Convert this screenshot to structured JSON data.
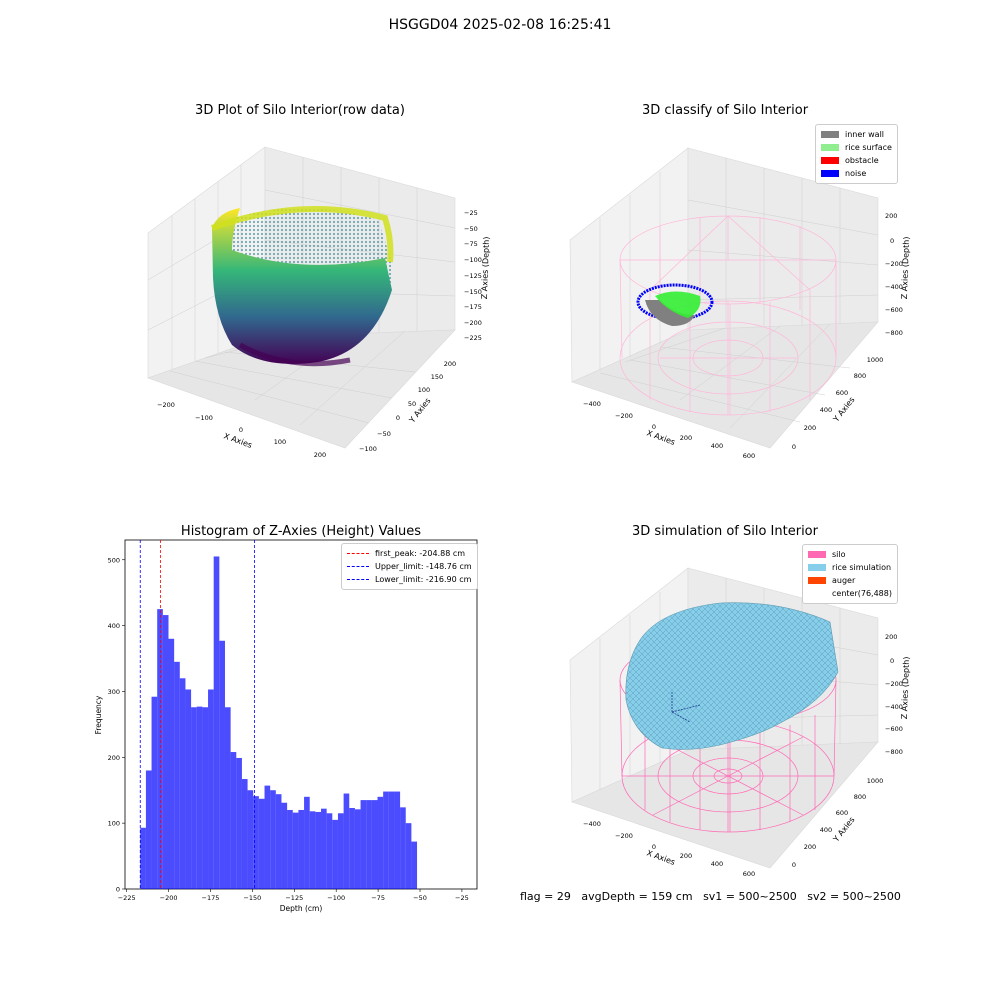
{
  "suptitle": "HSGGD04 2025-02-08 16:25:41",
  "footer": {
    "flag": "flag = 29",
    "avg_depth": "avgDepth = 159 cm",
    "sv1": "sv1 = 500~2500",
    "sv2": "sv2 = 500~2500"
  },
  "chart_data": [
    {
      "type": "scatter",
      "title": "3D Plot of Silo Interior(row data)",
      "xlabel": "X Axies",
      "ylabel": "Y Axies",
      "zlabel": "Z Axies (Depth)",
      "x_ticks": [
        "−200",
        "−100",
        "0",
        "100",
        "200"
      ],
      "y_ticks": [
        "−100",
        "−50",
        "0",
        "50",
        "100",
        "150",
        "200"
      ],
      "z_ticks": [
        "−25",
        "−50",
        "−75",
        "−100",
        "−125",
        "−150",
        "−175",
        "−200",
        "−225"
      ],
      "colormap": "viridis"
    },
    {
      "type": "scatter",
      "title": "3D classify of Silo Interior",
      "xlabel": "X Axies",
      "ylabel": "Y Axies",
      "zlabel": "Z Axies (Depth)",
      "x_ticks": [
        "−400",
        "−200",
        "0",
        "200",
        "400",
        "600"
      ],
      "y_ticks": [
        "0",
        "200",
        "400",
        "600",
        "800",
        "1000"
      ],
      "z_ticks": [
        "200",
        "0",
        "−200",
        "−400",
        "−600",
        "−800"
      ],
      "legend": [
        {
          "name": "inner wall",
          "color": "#808080"
        },
        {
          "name": "rice surface",
          "color": "#90ee90"
        },
        {
          "name": "obstacle",
          "color": "#ff0000"
        },
        {
          "name": "noise",
          "color": "#0000ff"
        }
      ],
      "legend_position": "top-right"
    },
    {
      "type": "bar",
      "title": "Histogram of Z-Axies (Height) Values",
      "xlabel": "Depth (cm)",
      "ylabel": "Frequency",
      "xlim": [
        -226,
        -16
      ],
      "ylim": [
        0,
        530
      ],
      "x_ticks": [
        -225,
        -200,
        -175,
        -150,
        -125,
        -100,
        -75,
        -50,
        -25
      ],
      "x_tick_labels": [
        "−225",
        "−200",
        "−175",
        "−150",
        "−125",
        "−100",
        "−75",
        "−50",
        "−25"
      ],
      "y_ticks": [
        0,
        100,
        200,
        300,
        400,
        500
      ],
      "bins_start": -216.9,
      "bins_width": 3.37,
      "values": [
        93,
        180,
        292,
        425,
        416,
        380,
        345,
        320,
        303,
        276,
        277,
        276,
        303,
        505,
        377,
        276,
        208,
        199,
        167,
        150,
        141,
        137,
        157,
        150,
        144,
        131,
        120,
        116,
        120,
        140,
        118,
        117,
        122,
        115,
        105,
        115,
        145,
        123,
        121,
        135,
        135,
        135,
        140,
        148,
        148,
        148,
        124,
        100,
        72
      ],
      "color": "#0000ff",
      "vlines": [
        {
          "x": -204.88,
          "color": "#ff0000",
          "label": "first_peak: -204.88 cm"
        },
        {
          "x": -148.76,
          "color": "#0000ff",
          "label": "Upper_limit: -148.76 cm"
        },
        {
          "x": -216.9,
          "color": "#0000ff",
          "label": "Lower_limit: -216.90 cm"
        }
      ],
      "legend_position": "top-right"
    },
    {
      "type": "scatter",
      "title": "3D simulation of Silo Interior",
      "xlabel": "X Axies",
      "ylabel": "Y Axies",
      "zlabel": "Z Axies (Depth)",
      "x_ticks": [
        "−400",
        "−200",
        "0",
        "200",
        "400",
        "600"
      ],
      "y_ticks": [
        "0",
        "200",
        "400",
        "600",
        "800",
        "1000"
      ],
      "z_ticks": [
        "200",
        "0",
        "−200",
        "−400",
        "−600",
        "−800"
      ],
      "legend": [
        {
          "name": "silo",
          "color": "#ff69b4"
        },
        {
          "name": "rice simulation",
          "color": "#87ceeb"
        },
        {
          "name": "auger",
          "color": "#ff4500"
        },
        {
          "name": "center(76,488)",
          "color": ""
        }
      ],
      "legend_position": "top-right"
    }
  ]
}
